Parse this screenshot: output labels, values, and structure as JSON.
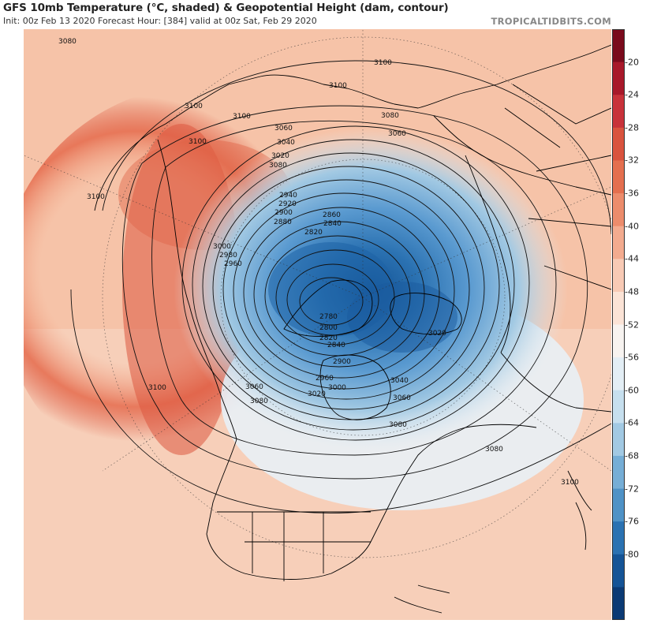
{
  "header": {
    "title": "GFS 10mb Temperature (°C, shaded) & Geopotential Height (dam, contour)",
    "subtitle": "Init: 00z Feb 13 2020   Forecast Hour: [384]   valid at 00z Sat, Feb 29 2020",
    "brand": "TROPICALTIDBITS.COM"
  },
  "colorbar": {
    "ticks": [
      "-20",
      "-24",
      "-28",
      "-32",
      "-36",
      "-40",
      "-44",
      "-48",
      "-52",
      "-56",
      "-60",
      "-64",
      "-68",
      "-72",
      "-76",
      "-80"
    ],
    "colors": [
      "#7a0a1c",
      "#a8182a",
      "#c8323a",
      "#d9533e",
      "#e46f4f",
      "#ec8c6c",
      "#f3ab8f",
      "#f8cab5",
      "#fbe3d6",
      "#f7f3f0",
      "#e3eef5",
      "#c6dfee",
      "#a2c9e3",
      "#76aed6",
      "#4f92c6",
      "#2b72b2",
      "#155496",
      "#0b3a74"
    ]
  },
  "map": {
    "contour_labels": [
      "3080",
      "3100",
      "3100",
      "3100",
      "3100",
      "3080",
      "3060",
      "3040",
      "3020",
      "3060",
      "3080",
      "3100",
      "3100",
      "2940",
      "2920",
      "2900",
      "2880",
      "2860",
      "2840",
      "2820",
      "3000",
      "2980",
      "2960",
      "2780",
      "2800",
      "2820",
      "2840",
      "2900",
      "2960",
      "3000",
      "3020",
      "3040",
      "3060",
      "3080",
      "3060",
      "3080",
      "3020",
      "3100",
      "3080",
      "3100"
    ]
  }
}
